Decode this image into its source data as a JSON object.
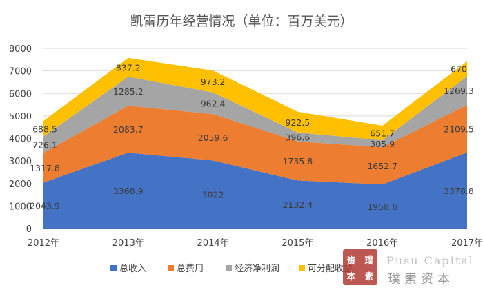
{
  "chart_data": {
    "type": "area",
    "stacked": true,
    "title": "凯雷历年经营情况（单位：百万美元）",
    "categories": [
      "2012年",
      "2013年",
      "2014年",
      "2015年",
      "2016年",
      "2017年"
    ],
    "ylim": [
      0,
      8000
    ],
    "yticks": [
      "0",
      "1000",
      "2000",
      "3000",
      "4000",
      "5000",
      "6000",
      "7000",
      "8000"
    ],
    "grid": true,
    "legend_position": "bottom",
    "series": [
      {
        "name": "总收入",
        "color": "#4472c4",
        "values": [
          2043.9,
          3368.9,
          3022,
          2132.4,
          1958.6,
          3378.8
        ],
        "labels": [
          "2043.9",
          "3368.9",
          "3022",
          "2132.4",
          "1958.6",
          "3378.8"
        ]
      },
      {
        "name": "总费用",
        "color": "#ed7d31",
        "values": [
          1317.8,
          2083.7,
          2059.6,
          1735.8,
          1652.7,
          2109.5
        ],
        "labels": [
          "1317.8",
          "2083.7",
          "2059.6",
          "1735.8",
          "1652.7",
          "2109.5"
        ]
      },
      {
        "name": "经济净利润",
        "color": "#a5a5a5",
        "values": [
          726.1,
          1285.2,
          962.4,
          396.6,
          305.9,
          1269.3
        ],
        "labels": [
          "726.1",
          "1285.2",
          "962.4",
          "396.6",
          "305.9",
          "1269.3"
        ]
      },
      {
        "name": "可分配收益",
        "color": "#ffc000",
        "values": [
          688.5,
          837.2,
          973.2,
          922.5,
          651.7,
          670
        ],
        "labels": [
          "688.5",
          "837.2",
          "973.2",
          "922.5",
          "651.7",
          "670"
        ]
      }
    ]
  },
  "watermark": {
    "latin": "Pusu Capital",
    "cjk": "璞素资本",
    "seal_chars": [
      "资",
      "璞",
      "本",
      "素"
    ]
  }
}
